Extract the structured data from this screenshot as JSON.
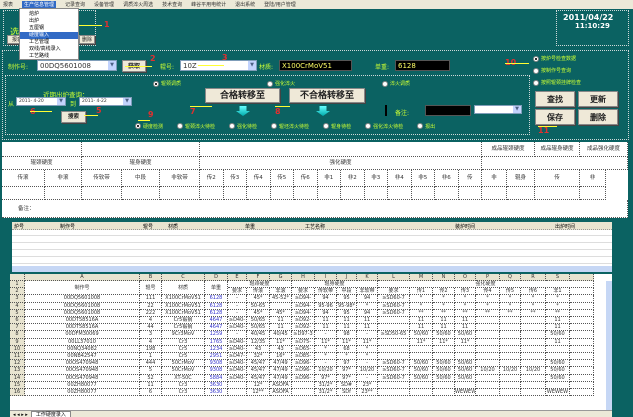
{
  "menu": [
    "报表",
    "生产信息管理",
    "记录查询",
    "设备管理",
    "调质淬火周选",
    "技术查询",
    "峰谷平用电统计",
    "退出系统",
    "登陆/用户管理"
  ],
  "menu_selected": 1,
  "dropdown": [
    "熔炉",
    "出炉",
    "五厘钢",
    "硬度输入",
    "工艺管理",
    "双线/高线录入",
    "工艺路线"
  ],
  "dropdown_selected": 3,
  "header": {
    "title": "选",
    "left_button": "报表",
    "right_button": "删除",
    "date": "2011/04/22",
    "time": "11:10:29"
  },
  "form": {
    "zhizuohao_label": "制作号:",
    "zhizuohao_value": "00DQ5601008",
    "get_button": "获取",
    "roll_label": "辊号:",
    "roll_value": "10Z",
    "material_label": "材质:",
    "material_value": "X100CrMoV51",
    "weight_label": "单重:",
    "weight_value": "6128",
    "recent_label": "近期出炉查询：",
    "from_label": "从",
    "from_value": "2011- 4-20",
    "to_label": "到",
    "to_value": "2011- 4-22",
    "search_button": "搜索",
    "pass_button": "合格转移至",
    "fail_button": "不合格转移至",
    "remark_label": "备注:",
    "radios_top": [
      "辊颈调质",
      "强化淬火",
      "淬火调质"
    ],
    "radios_bottom": [
      "硬度检测",
      "辊颈淬火待检",
      "强化待检",
      "辊坯淬火待检",
      "辊身待检",
      "强化淬火待检",
      "报出"
    ],
    "radios_right": [
      "按炉号检查数据",
      "按制作号查询",
      "按照辊颈挂牌检查"
    ],
    "find_button": "查找",
    "update_button": "更新",
    "save_button": "保存",
    "delete_button": "删除"
  },
  "annotations": [
    "1",
    "2",
    "3",
    "4",
    "5",
    "6",
    "7",
    "8",
    "9",
    "10",
    "11"
  ],
  "hardness_table": {
    "product_headers": [
      "成品辊颈硬度",
      "成品辊身硬度",
      "成品强化硬度"
    ],
    "groups": [
      "辊颈硬度",
      "辊身硬度",
      "强化硬度"
    ],
    "columns": [
      "传滚",
      "非滚",
      "传软带",
      "中段",
      "非软带",
      "传1",
      "传2",
      "传3",
      "传4",
      "传5",
      "传6",
      "非1",
      "非2",
      "非3",
      "非4",
      "非5",
      "非6",
      "传",
      "非",
      "辊身",
      "传",
      "非"
    ],
    "remark": "备注："
  },
  "list_grid": {
    "columns": [
      "炉号",
      "制作号",
      "辊号",
      "材质",
      "单重",
      "工艺名称",
      "装炉时间",
      "出炉时间"
    ]
  },
  "spreadsheet": {
    "col_letters": [
      "A",
      "B",
      "C",
      "D",
      "E",
      "F",
      "G",
      "H",
      "I",
      "J",
      "K",
      "L",
      "M",
      "N",
      "O",
      "P",
      "Q",
      "R",
      "S"
    ],
    "header_main": [
      "制作号",
      "辊号",
      "材质",
      "单重"
    ],
    "groups": [
      "辊颈硬度",
      "辊身硬度",
      "强化硬度"
    ],
    "sub_headers": [
      "要求",
      "传滚",
      "非滚",
      "要求",
      "传软带",
      "中段",
      "非软带",
      "要求",
      "传1",
      "传2",
      "传3",
      "传4",
      "传5",
      "传6",
      "非1"
    ],
    "rows": [
      [
        "00DQ5601008",
        "111",
        "X100CrMoV51",
        "6128",
        "-",
        "45*",
        "45-52*",
        "≥D94-",
        "94",
        "95",
        "94",
        "≥SD60-7",
        "*",
        "*",
        "*",
        "*",
        "*",
        "*",
        "*"
      ],
      [
        "00DQ5601008",
        "22",
        "X100CrMoV51",
        "6128",
        "-",
        "50-65",
        "",
        "≥D94-",
        "95-96",
        "95-98*",
        "*",
        "≥SD60-7",
        "*",
        "*",
        "*",
        "*",
        "*",
        "*",
        "*"
      ],
      [
        "00DQ5601008",
        "222",
        "X100CrMoV51",
        "6128",
        "-",
        "45*",
        "45*",
        "≥D94-",
        "94",
        "95",
        "94",
        "≥SD60-7",
        "**",
        "**",
        "**",
        "**",
        "**",
        "**",
        "**"
      ],
      [
        "00DT58516A",
        "4",
        "Cr5锻钢",
        "4647",
        "≥D40-",
        "50/65",
        "11",
        "≥D92-",
        "11",
        "11",
        "11",
        "",
        "11",
        "11",
        "11",
        "",
        "",
        "",
        "11"
      ],
      [
        "00DT58516A",
        "44",
        "Cr5锻钢",
        "4647",
        "≥D40-",
        "50/65",
        "11",
        "≥D92-",
        "11",
        "11",
        "11",
        "",
        "11",
        "11",
        "11",
        "",
        "",
        "",
        "11"
      ],
      [
        "00DFM30069",
        "3",
        "9Cr3MoV",
        "1259",
        "-",
        "40/45",
        "40/45",
        "≥D97-3",
        "-",
        "98",
        "-",
        "≥SD50-65",
        "50/60",
        "50/60",
        "50/60",
        "",
        "",
        "",
        "50/60"
      ],
      [
        "00LL37010",
        "4",
        "Cr3",
        "1765",
        "≥D40-",
        "12/35",
        "11*",
        "≥D75-",
        "11*",
        "11*",
        "11*",
        "",
        "11*",
        "11*",
        "11*",
        "",
        "",
        "",
        "11"
      ],
      [
        "00NQ34082",
        "198",
        "Cr5",
        "1234",
        "≥D40-",
        "43",
        "43",
        "≥D65-",
        "*",
        "68",
        "*",
        "",
        "",
        "",
        "",
        "",
        "",
        "",
        ""
      ],
      [
        "00NB42547",
        "1",
        "Cr5",
        "2951",
        "≥D47-",
        "32*",
        "16*",
        "≥D85-",
        "*",
        "*",
        "*",
        "",
        "",
        "",
        "",
        "",
        "",
        "",
        ""
      ],
      [
        "00OS470948",
        "444",
        "50CrMoV",
        "9308",
        "≥D40-",
        "45/47",
        "47/49",
        "≥D96-",
        "-",
        "97",
        "-",
        "≥SD60-7",
        "50/60",
        "50/60",
        "50/60",
        "",
        "",
        "",
        "50/60"
      ],
      [
        "00OS470948",
        "5",
        "50CrMoV",
        "9308",
        "≥D40-",
        "45/47",
        "47/49",
        "≥D96-",
        "10/20",
        "97*",
        "10/20",
        "≥SD60-7",
        "50/60",
        "50/60",
        "50/60",
        "10/20",
        "10/20",
        "10/20",
        "50/60"
      ],
      [
        "00OS470948",
        "52",
        "XT-50C",
        "5884",
        "≥D40-",
        "45/47",
        "47/49",
        "≥D96-",
        "97*",
        "97*",
        "-",
        "≥SD60-7",
        "50/60",
        "50/60",
        "50/60",
        "",
        "",
        "",
        "50/60"
      ],
      [
        "00ZH80077",
        "11",
        "Cr3",
        "3630",
        "",
        "12*",
        "ASOFA",
        "",
        "31/2*",
        "SD#",
        "23*",
        "",
        "",
        "",
        "",
        "",
        "",
        "",
        ""
      ],
      [
        "00ZH80077",
        "6",
        "Cr3",
        "3630",
        "",
        "12**",
        "ASOFA",
        "",
        "31/2*",
        "SDf",
        "23**",
        "",
        "",
        "",
        "WEWEW",
        "",
        "",
        "",
        "WEWEW"
      ]
    ],
    "sheet_tab": "工作硬度录入"
  },
  "colors": {
    "background": "#0b6262",
    "label": "#ccff33",
    "annotation": "#e03030",
    "weight_link": "#3333cc"
  }
}
